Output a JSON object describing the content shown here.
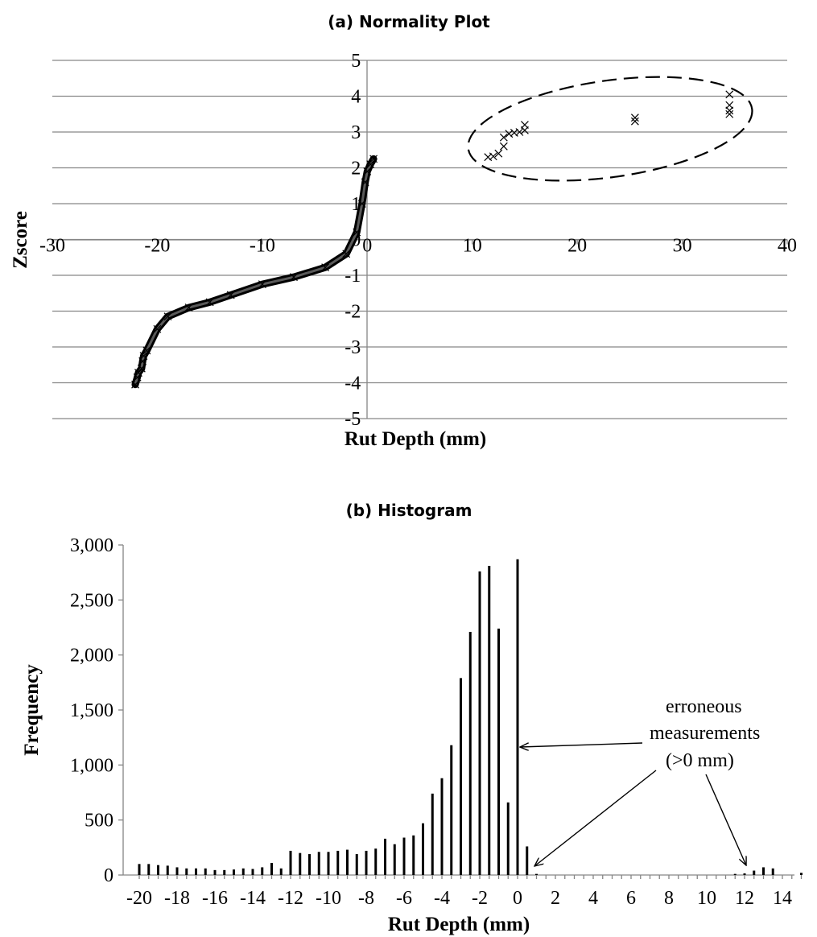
{
  "chart_data": [
    {
      "type": "scatter",
      "title": "(a) Normality Plot",
      "xlabel": "Rut Depth (mm)",
      "ylabel": "Zscore",
      "xlim": [
        -30,
        40
      ],
      "ylim": [
        -5,
        5
      ],
      "x_ticks": [
        "-30",
        "-20",
        "-10",
        "0",
        "10",
        "20",
        "30",
        "40"
      ],
      "y_ticks": [
        "5",
        "4",
        "3",
        "2",
        "1",
        "0",
        "-1",
        "-2",
        "-3",
        "-4",
        "-5"
      ],
      "marker": "x",
      "grid": true,
      "series": [
        {
          "values": [
            [
              -22.1,
              -4.05
            ],
            [
              -21.9,
              -3.85
            ],
            [
              -21.8,
              -3.72
            ],
            [
              -21.5,
              -3.6
            ],
            [
              -21.4,
              -3.4
            ],
            [
              -21.3,
              -3.25
            ],
            [
              -21.0,
              -3.1
            ],
            [
              -20.0,
              -2.5
            ],
            [
              -19.0,
              -2.15
            ],
            [
              -17.0,
              -1.9
            ],
            [
              -15.0,
              -1.75
            ],
            [
              -13.0,
              -1.55
            ],
            [
              -10.0,
              -1.25
            ],
            [
              -7.0,
              -1.05
            ],
            [
              -4.0,
              -0.78
            ],
            [
              -2.0,
              -0.4
            ],
            [
              -1.0,
              0.2
            ],
            [
              -0.5,
              1.0
            ],
            [
              -0.2,
              1.6
            ],
            [
              0.0,
              1.9
            ],
            [
              0.3,
              2.1
            ],
            [
              0.6,
              2.25
            ],
            [
              11.5,
              2.3
            ],
            [
              12.0,
              2.32
            ],
            [
              12.5,
              2.4
            ],
            [
              13.0,
              2.6
            ],
            [
              13.0,
              2.85
            ],
            [
              13.5,
              2.95
            ],
            [
              14.0,
              2.98
            ],
            [
              14.5,
              3.0
            ],
            [
              15.0,
              3.05
            ],
            [
              15.0,
              3.2
            ],
            [
              25.5,
              3.3
            ],
            [
              25.5,
              3.4
            ],
            [
              34.5,
              3.5
            ],
            [
              34.5,
              3.6
            ],
            [
              34.5,
              3.75
            ],
            [
              34.5,
              4.05
            ]
          ]
        }
      ]
    },
    {
      "type": "bar",
      "title": "(b) Histogram",
      "xlabel": "Rut Depth (mm)",
      "ylabel": "Frequency",
      "ylim": [
        0,
        3000
      ],
      "x_ticks": [
        "-20",
        "-18",
        "-16",
        "-14",
        "-12",
        "-10",
        "-8",
        "-6",
        "-4",
        "-2",
        "0",
        "2",
        "4",
        "6",
        "8",
        "10",
        "12",
        "14"
      ],
      "y_ticks": [
        "3,000",
        "2,500",
        "2,000",
        "1,500",
        "1,000",
        "500",
        "0"
      ],
      "categories": [
        -20,
        -19.5,
        -19,
        -18.5,
        -18,
        -17.5,
        -17,
        -16.5,
        -16,
        -15.5,
        -15,
        -14.5,
        -14,
        -13.5,
        -13,
        -12.5,
        -12,
        -11.5,
        -11,
        -10.5,
        -10,
        -9.5,
        -9,
        -8.5,
        -8,
        -7.5,
        -7,
        -6.5,
        -6,
        -5.5,
        -5,
        -4.5,
        -4,
        -3.5,
        -3,
        -2.5,
        -2,
        -1.5,
        -1,
        -0.5,
        0,
        0.5,
        1,
        11.5,
        12,
        12.5,
        13,
        13.5,
        15
      ],
      "values": [
        100,
        100,
        90,
        85,
        70,
        60,
        60,
        60,
        45,
        45,
        50,
        60,
        55,
        70,
        110,
        60,
        220,
        200,
        190,
        210,
        210,
        220,
        230,
        190,
        220,
        240,
        330,
        280,
        340,
        360,
        470,
        740,
        880,
        1180,
        1790,
        2210,
        2760,
        2810,
        2240,
        660,
        2870,
        260,
        10,
        10,
        15,
        40,
        70,
        60,
        20
      ],
      "annotation": [
        "erroneous",
        "measurements",
        "(>0 mm)"
      ]
    }
  ]
}
